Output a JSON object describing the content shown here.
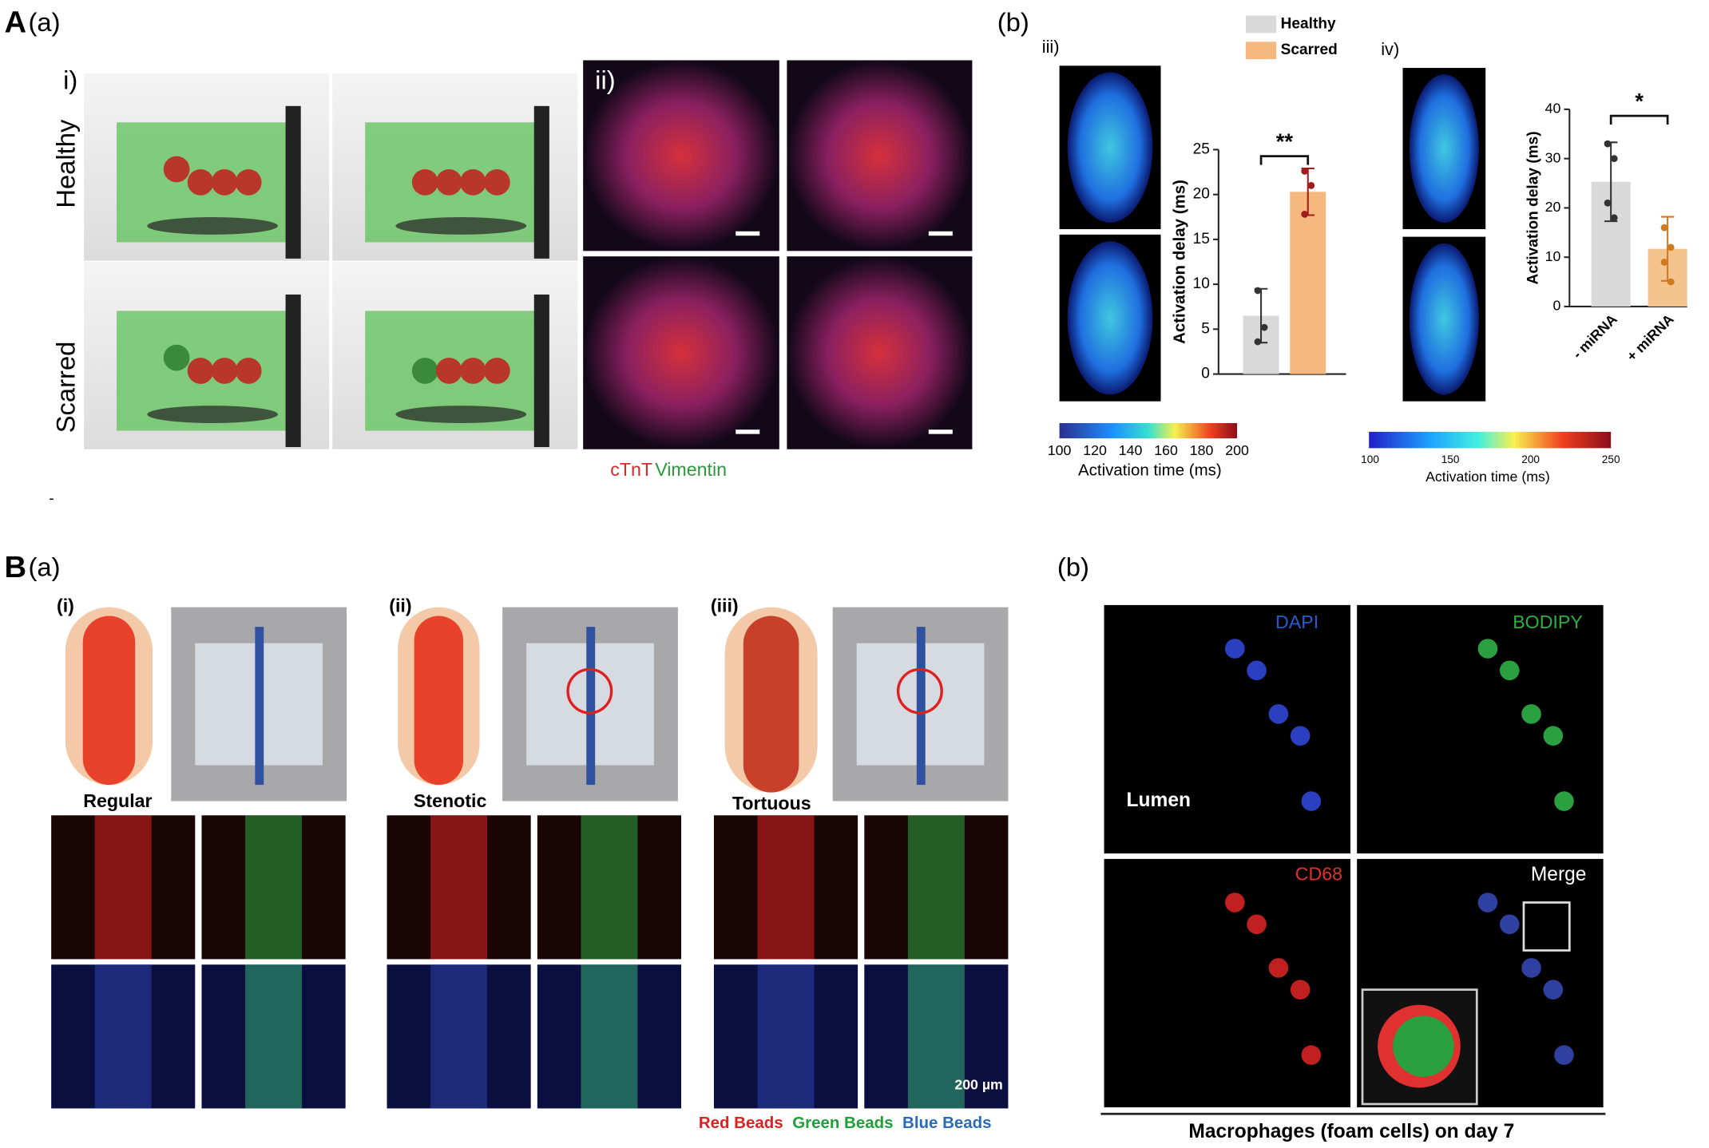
{
  "figure": {
    "A": {
      "label": "A",
      "sub": "(a)",
      "i": "i)",
      "healthy": "Healthy",
      "scarred": "Scarred",
      "ii": "ii)",
      "stain_red": "cTnT",
      "stain_green": "Vimentin",
      "mark": "-"
    },
    "Ab": {
      "label": "(b)",
      "iii": "iii)",
      "iv": "iv)",
      "colorbar1": {
        "ticks": [
          100,
          120,
          140,
          160,
          180,
          200
        ],
        "label": "Activation time (ms)"
      },
      "colorbar2": {
        "ticks": [
          100,
          150,
          200,
          250
        ],
        "label": "Activation time (ms)"
      }
    },
    "B": {
      "label": "B",
      "sub": "(a)",
      "i": "(i)",
      "ii": "(ii)",
      "iii": "(iii)",
      "regular": "Regular",
      "stenotic": "Stenotic",
      "tortuous": "Tortuous",
      "scale": "200 µm",
      "beads": [
        "Red Beads",
        "Green Beads",
        "Blue Beads"
      ]
    },
    "Bb": {
      "label": "(b)",
      "dapi": "DAPI",
      "bodipy": "BODIPY",
      "lumen": "Lumen",
      "cd68": "CD68",
      "merge": "Merge",
      "caption": "Macrophages (foam cells) on day 7"
    }
  },
  "chart_data": [
    {
      "type": "bar",
      "categories": [
        null
      ],
      "ylabel": "Activation delay (ms)",
      "significance": "**",
      "ylim": [
        0,
        25
      ],
      "yticks": [
        0,
        5,
        10,
        15,
        20,
        25
      ],
      "series": [
        {
          "name": "Healthy",
          "color": "#d9d9d9",
          "point_color": "#333333",
          "values": [
            6.5
          ],
          "errors": [
            3.0
          ],
          "points": [
            [
              9.3,
              5.2,
              3.6
            ]
          ]
        },
        {
          "name": "Scarred",
          "color": "#f5b97f",
          "point_color": "#a11d1d",
          "values": [
            20.3
          ],
          "errors": [
            2.6
          ],
          "points": [
            [
              22.6,
              21.0,
              17.8
            ]
          ]
        }
      ]
    },
    {
      "type": "bar",
      "categories": [
        "- miRNA",
        "+ miRNA"
      ],
      "ylabel": "Activation delay (ms)",
      "significance": "*",
      "ylim": [
        0,
        40
      ],
      "yticks": [
        0,
        10,
        20,
        30,
        40
      ],
      "values": [
        25.3,
        11.7
      ],
      "errors": [
        8.0,
        6.5
      ],
      "colors": [
        "#d9d9d9",
        "#f5c48e"
      ],
      "point_colors": [
        "#333333",
        "#d07a1e"
      ],
      "points": [
        [
          33.0,
          30.0,
          21.0,
          18.0
        ],
        [
          16.0,
          12.0,
          9.0,
          5.0
        ]
      ]
    }
  ]
}
